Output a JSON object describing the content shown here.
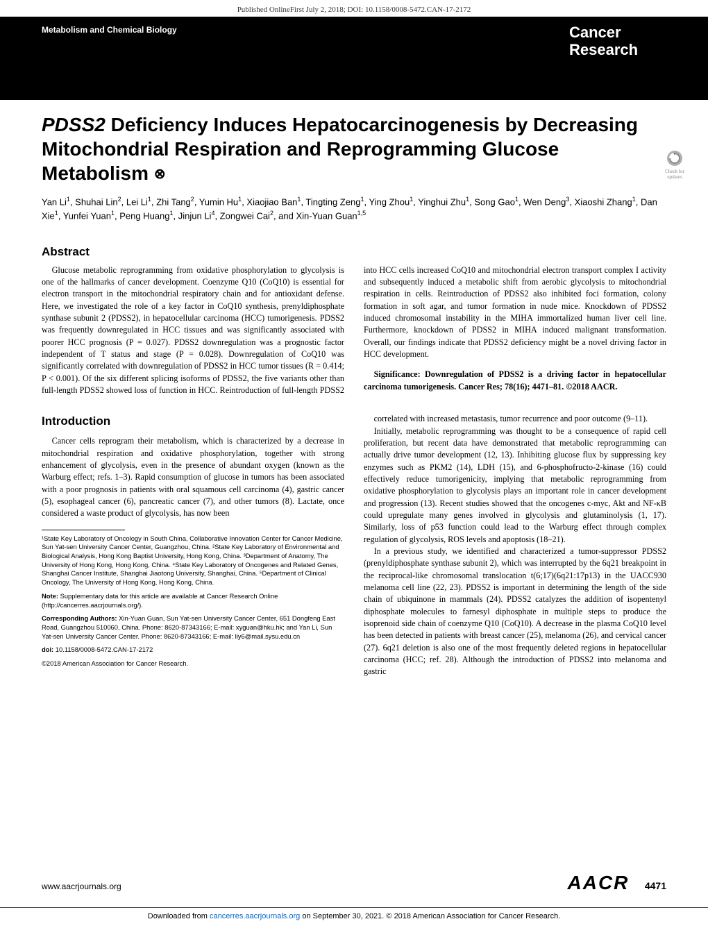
{
  "header": {
    "published_online": "Published OnlineFirst July 2, 2018; DOI: 10.1158/0008-5472.CAN-17-2172",
    "category": "Metabolism and Chemical Biology",
    "journal_line1": "Cancer",
    "journal_line2": "Research"
  },
  "title": {
    "italic_gene": "PDSS2",
    "rest": " Deficiency Induces Hepatocarcinogenesis by Decreasing Mitochondrial Respiration and Reprogramming Glucose Metabolism",
    "open_icon": "⊗"
  },
  "authors_html": "Yan Li<sup>1</sup>, Shuhai Lin<sup>2</sup>, Lei Li<sup>1</sup>, Zhi Tang<sup>2</sup>, Yumin Hu<sup>1</sup>, Xiaojiao Ban<sup>1</sup>, Tingting Zeng<sup>1</sup>, Ying Zhou<sup>1</sup>, Yinghui Zhu<sup>1</sup>, Song Gao<sup>1</sup>, Wen Deng<sup>3</sup>, Xiaoshi Zhang<sup>1</sup>, Dan Xie<sup>1</sup>, Yunfei Yuan<sup>1</sup>, Peng Huang<sup>1</sup>, Jinjun Li<sup>4</sup>, Zongwei Cai<sup>2</sup>, and Xin-Yuan Guan<sup>1,5</sup>",
  "check_updates": "Check for updates",
  "abstract": {
    "heading": "Abstract",
    "body": "Glucose metabolic reprogramming from oxidative phosphorylation to glycolysis is one of the hallmarks of cancer development. Coenzyme Q10 (CoQ10) is essential for electron transport in the mitochondrial respiratory chain and for antioxidant defense. Here, we investigated the role of a key factor in CoQ10 synthesis, prenyldiphosphate synthase subunit 2 (PDSS2), in hepatocellular carcinoma (HCC) tumorigenesis. PDSS2 was frequently downregulated in HCC tissues and was significantly associated with poorer HCC prognosis (P = 0.027). PDSS2 downregulation was a prognostic factor independent of T status and stage (P = 0.028). Downregulation of CoQ10 was significantly correlated with downregulation of PDSS2 in HCC tumor tissues (R = 0.414; P < 0.001). Of the six different splicing isoforms of PDSS2, the five variants other than full-length PDSS2 showed loss of function in HCC. Reintroduction of full-length PDSS2 into HCC cells increased CoQ10 and mitochondrial electron transport complex I activity and subsequently induced a metabolic shift from aerobic glycolysis to mitochondrial respiration in cells. Reintroduction of PDSS2 also inhibited foci formation, colony formation in soft agar, and tumor formation in nude mice. Knockdown of PDSS2 induced chromosomal instability in the MIHA immortalized human liver cell line. Furthermore, knockdown of PDSS2 in MIHA induced malignant transformation. Overall, our findings indicate that PDSS2 deficiency might be a novel driving factor in HCC development.",
    "significance": "Significance: Downregulation of PDSS2 is a driving factor in hepatocellular carcinoma tumorigenesis. Cancer Res; 78(16); 4471–81. ©2018 AACR."
  },
  "introduction": {
    "heading": "Introduction",
    "p1": "Cancer cells reprogram their metabolism, which is characterized by a decrease in mitochondrial respiration and oxidative phosphorylation, together with strong enhancement of glycolysis, even in the presence of abundant oxygen (known as the Warburg effect; refs. 1–3). Rapid consumption of glucose in tumors has been associated with a poor prognosis in patients with oral squamous cell carcinoma (4), gastric cancer (5), esophageal cancer (6), pancreatic cancer (7), and other tumors (8). Lactate, once considered a waste product of glycolysis, has now been",
    "p1b": "correlated with increased metastasis, tumor recurrence and poor outcome (9–11).",
    "p2": "Initially, metabolic reprogramming was thought to be a consequence of rapid cell proliferation, but recent data have demonstrated that metabolic reprogramming can actually drive tumor development (12, 13). Inhibiting glucose flux by suppressing key enzymes such as PKM2 (14), LDH (15), and 6-phosphofructo-2-kinase (16) could effectively reduce tumorigenicity, implying that metabolic reprogramming from oxidative phosphorylation to glycolysis plays an important role in cancer development and progression (13). Recent studies showed that the oncogenes c-myc, Akt and NF-κB could upregulate many genes involved in glycolysis and glutaminolysis (1, 17). Similarly, loss of p53 function could lead to the Warburg effect through complex regulation of glycolysis, ROS levels and apoptosis (18–21).",
    "p3": "In a previous study, we identified and characterized a tumor-suppressor PDSS2 (prenyldiphosphate synthase subunit 2), which was interrupted by the 6q21 breakpoint in the reciprocal-like chromosomal translocation t(6;17)(6q21:17p13) in the UACC930 melanoma cell line (22, 23). PDSS2 is important in determining the length of the side chain of ubiquinone in mammals (24). PDSS2 catalyzes the addition of isopentenyl diphosphate molecules to farnesyl diphosphate in multiple steps to produce the isoprenoid side chain of coenzyme Q10 (CoQ10). A decrease in the plasma CoQ10 level has been detected in patients with breast cancer (25), melanoma (26), and cervical cancer (27). 6q21 deletion is also one of the most frequently deleted regions in hepatocellular carcinoma (HCC; ref. 28). Although the introduction of PDSS2 into melanoma and gastric"
  },
  "footnotes": {
    "affiliations": "¹State Key Laboratory of Oncology in South China, Collaborative Innovation Center for Cancer Medicine, Sun Yat-sen University Cancer Center, Guangzhou, China. ²State Key Laboratory of Environmental and Biological Analysis, Hong Kong Baptist University, Hong Kong, China. ³Department of Anatomy, The University of Hong Kong, Hong Kong, China. ⁴State Key Laboratory of Oncogenes and Related Genes, Shanghai Cancer Institute, Shanghai Jiaotong University, Shanghai, China. ⁵Department of Clinical Oncology, The University of Hong Kong, Hong Kong, China.",
    "note_label": "Note:",
    "note": " Supplementary data for this article are available at Cancer Research Online (http://cancerres.aacrjournals.org/).",
    "corr_label": "Corresponding Authors:",
    "corr": " Xin-Yuan Guan, Sun Yat-sen University Cancer Center, 651 Dongfeng East Road, Guangzhou 510060, China. Phone: 8620-87343166; E-mail: xyguan@hku.hk; and Yan Li, Sun Yat-sen University Cancer Center. Phone: 8620-87343166; E-mail: liy6@mail.sysu.edu.cn",
    "doi_label": "doi:",
    "doi": " 10.1158/0008-5472.CAN-17-2172",
    "copyright": "©2018 American Association for Cancer Research."
  },
  "footer": {
    "url": "www.aacrjournals.org",
    "brand": "AACR",
    "page": "4471"
  },
  "downloaded": {
    "prefix": "Downloaded from ",
    "link": "cancerres.aacrjournals.org",
    "suffix": " on September 30, 2021. © 2018 American Association for Cancer Research."
  },
  "colors": {
    "black": "#000000",
    "white": "#ffffff",
    "link": "#0066cc",
    "gray": "#888888"
  }
}
